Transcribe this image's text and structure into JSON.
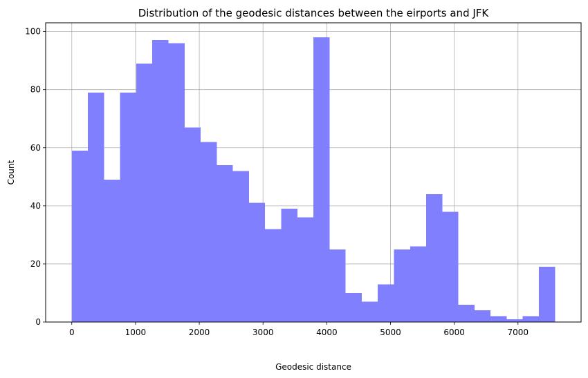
{
  "chart_data": {
    "type": "bar",
    "title": "Distribution of the geodesic distances between the eirports and JFK",
    "xlabel": "Geodesic distance",
    "ylabel": "Count",
    "bin_edges": [
      0,
      252.7,
      505.4,
      758.1,
      1010.8,
      1263.5,
      1516.2,
      1768.9,
      2021.6,
      2274.3,
      2527.0,
      2779.7,
      3032.4,
      3285.1,
      3537.8,
      3790.5,
      4043.2,
      4295.9,
      4548.6,
      4801.3,
      5054.0,
      5306.7,
      5559.4,
      5812.1,
      6064.8,
      6317.5,
      6570.2,
      6822.9,
      7075.6,
      7328.3,
      7581.0
    ],
    "values": [
      59,
      79,
      49,
      79,
      89,
      97,
      96,
      67,
      62,
      54,
      52,
      41,
      32,
      39,
      36,
      98,
      25,
      10,
      7,
      13,
      25,
      26,
      44,
      38,
      6,
      4,
      2,
      1,
      2,
      19
    ],
    "xlim": [
      -410,
      7990
    ],
    "ylim": [
      0,
      103
    ],
    "x_ticks": [
      0,
      1000,
      2000,
      3000,
      4000,
      5000,
      6000,
      7000
    ],
    "y_ticks": [
      0,
      20,
      40,
      60,
      80,
      100
    ],
    "x_tick_labels": [
      "0",
      "1000",
      "2000",
      "3000",
      "4000",
      "5000",
      "6000",
      "7000"
    ],
    "y_tick_labels": [
      "0",
      "20",
      "40",
      "60",
      "80",
      "100"
    ],
    "grid": true,
    "bar_color": "#8080ff",
    "grid_color": "#b0b0b0"
  }
}
